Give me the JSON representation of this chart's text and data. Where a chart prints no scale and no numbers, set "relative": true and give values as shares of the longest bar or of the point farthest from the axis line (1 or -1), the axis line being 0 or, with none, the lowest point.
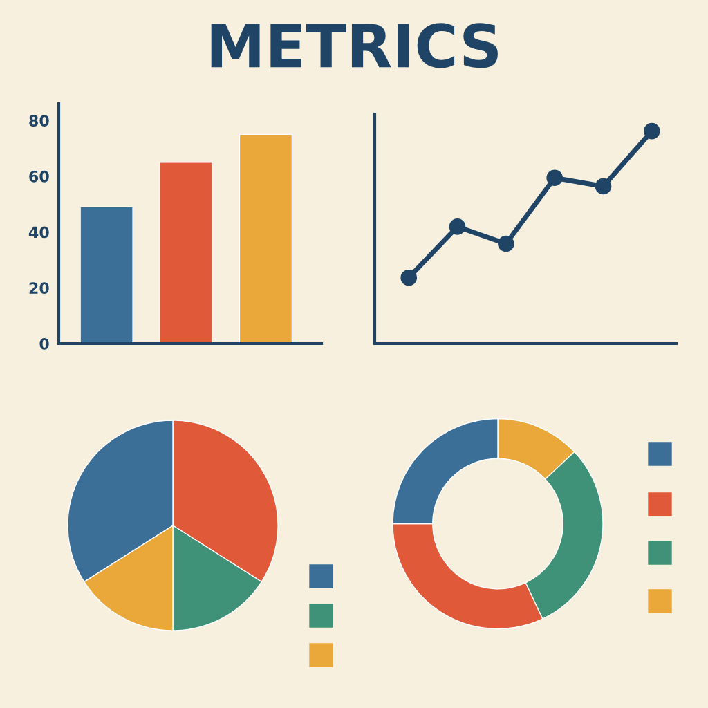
{
  "chart_data": [
    {
      "type": "bar",
      "title": "METRICS",
      "categories": [
        null,
        null,
        null
      ],
      "values": [
        49,
        65,
        75
      ],
      "colors": [
        "#3b6f98",
        "#e05a3a",
        "#eaa83a"
      ],
      "ylim": [
        0,
        86
      ],
      "yticks": [
        0,
        20,
        40,
        60,
        80
      ],
      "grid": false
    },
    {
      "type": "line",
      "relative": true,
      "categories": [
        null,
        null,
        null,
        null,
        null,
        null
      ],
      "values": [
        0.31,
        0.55,
        0.47,
        0.78,
        0.74,
        1.0
      ],
      "color": "#1f4466",
      "marker": "circle",
      "line_style": "solid"
    },
    {
      "type": "pie",
      "categories": [
        null,
        null,
        null,
        null
      ],
      "values": [
        34,
        16,
        16,
        34
      ],
      "colors": [
        "#e05a3a",
        "#3f9277",
        "#eaa83a",
        "#3b6f98"
      ]
    },
    {
      "type": "donut",
      "categories": [
        null,
        null,
        null,
        null
      ],
      "values": [
        13,
        30,
        32,
        25
      ],
      "colors": [
        "#eaa83a",
        "#3f9277",
        "#e05a3a",
        "#3b6f98"
      ]
    }
  ]
}
